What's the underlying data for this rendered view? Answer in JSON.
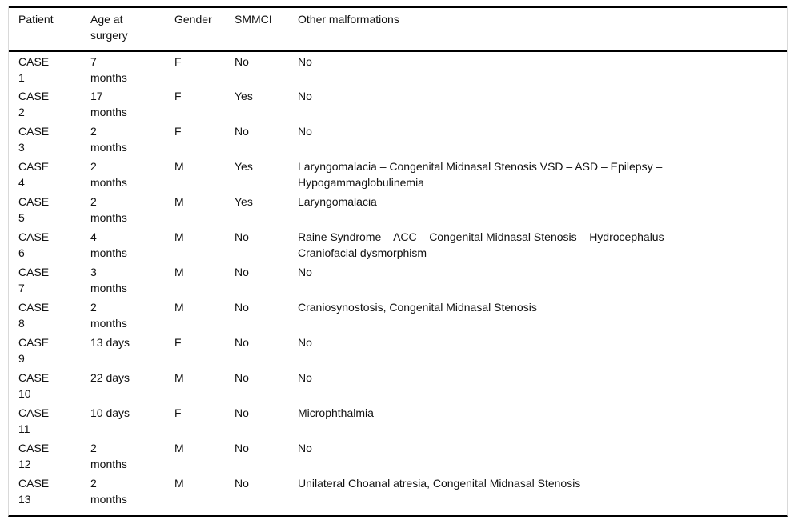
{
  "colors": {
    "background": "#ffffff",
    "text": "#111111",
    "rule": "#000000",
    "frame_border": "#d9d9d9"
  },
  "table": {
    "columns": [
      {
        "key": "patient",
        "label": "Patient"
      },
      {
        "key": "age",
        "label": "Age at\nsurgery"
      },
      {
        "key": "gender",
        "label": "Gender"
      },
      {
        "key": "smmci",
        "label": "SMMCI"
      },
      {
        "key": "other",
        "label": "Other malformations"
      }
    ],
    "rows": [
      {
        "patient": "CASE\n1",
        "age": "7\nmonths",
        "gender": "F",
        "smmci": "No",
        "other": "No"
      },
      {
        "patient": "CASE\n2",
        "age": "17\nmonths",
        "gender": "F",
        "smmci": "Yes",
        "other": "No"
      },
      {
        "patient": "CASE\n3",
        "age": "2\nmonths",
        "gender": "F",
        "smmci": "No",
        "other": "No"
      },
      {
        "patient": "CASE\n4",
        "age": "2\nmonths",
        "gender": "M",
        "smmci": "Yes",
        "other": "Laryngomalacia – Congenital Midnasal Stenosis VSD – ASD – Epilepsy –\nHypogammaglobulinemia"
      },
      {
        "patient": "CASE\n5",
        "age": "2\nmonths",
        "gender": "M",
        "smmci": "Yes",
        "other": "Laryngomalacia"
      },
      {
        "patient": "CASE\n6",
        "age": "4\nmonths",
        "gender": "M",
        "smmci": "No",
        "other": "Raine Syndrome – ACC – Congenital Midnasal Stenosis – Hydrocephalus –\nCraniofacial dysmorphism"
      },
      {
        "patient": "CASE\n7",
        "age": "3\nmonths",
        "gender": "M",
        "smmci": "No",
        "other": "No"
      },
      {
        "patient": "CASE\n8",
        "age": "2\nmonths",
        "gender": "M",
        "smmci": "No",
        "other": "Craniosynostosis, Congenital Midnasal Stenosis"
      },
      {
        "patient": "CASE\n9",
        "age": "13 days",
        "gender": "F",
        "smmci": "No",
        "other": "No"
      },
      {
        "patient": "CASE\n10",
        "age": "22 days",
        "gender": "M",
        "smmci": "No",
        "other": "No"
      },
      {
        "patient": "CASE\n11",
        "age": "10 days",
        "gender": "F",
        "smmci": "No",
        "other": "Microphthalmia"
      },
      {
        "patient": "CASE\n12",
        "age": "2\nmonths",
        "gender": "M",
        "smmci": "No",
        "other": "No"
      },
      {
        "patient": "CASE\n13",
        "age": "2\nmonths",
        "gender": "M",
        "smmci": "No",
        "other": "Unilateral Choanal atresia, Congenital Midnasal Stenosis"
      }
    ]
  }
}
